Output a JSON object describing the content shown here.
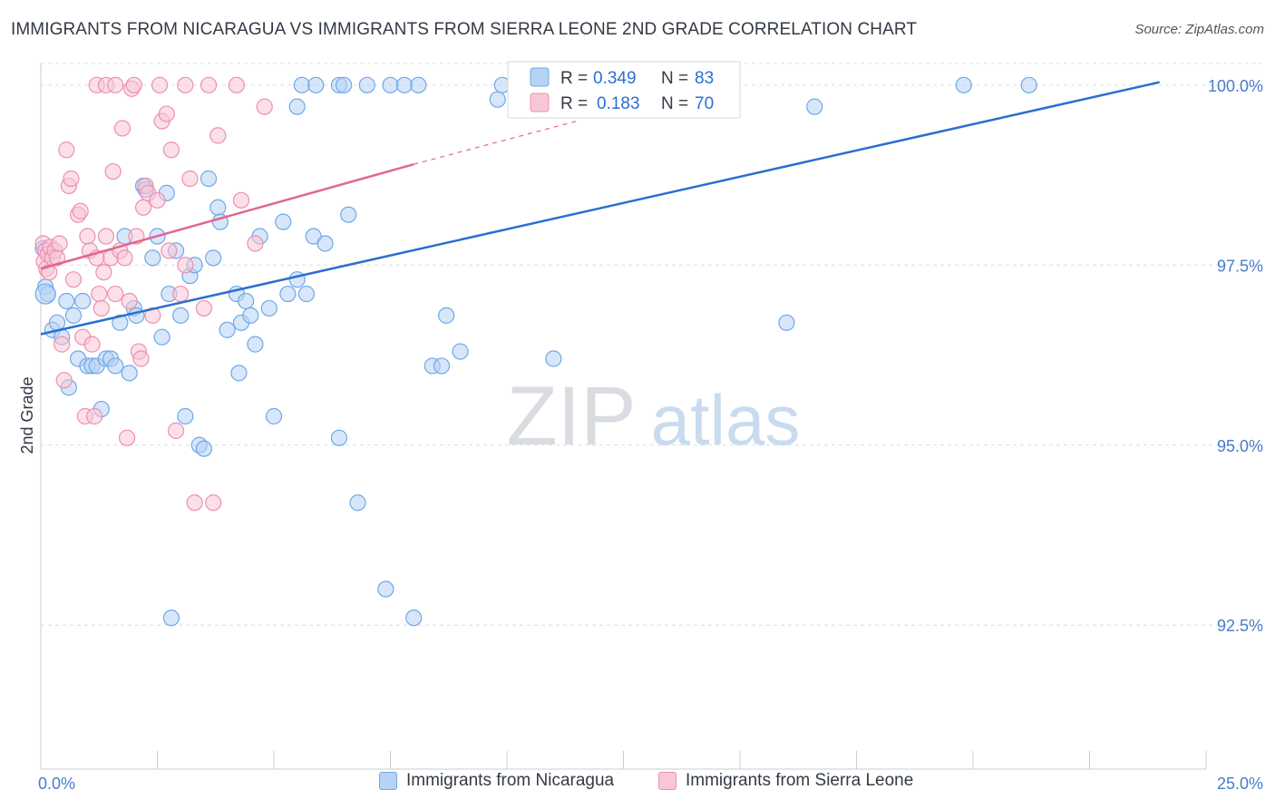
{
  "header": {
    "title": "IMMIGRANTS FROM NICARAGUA VS IMMIGRANTS FROM SIERRA LEONE 2ND GRADE CORRELATION CHART",
    "source": "Source: ZipAtlas.com"
  },
  "watermark": {
    "zip": "ZIP",
    "atlas": "atlas"
  },
  "colors": {
    "blue": "#6fa8e8",
    "blue_line": "#2a6fd0",
    "blue_fill": "#b6d2f4",
    "pink": "#ee8fb0",
    "pink_line": "#e2668f",
    "pink_fill": "#f8c7d7",
    "tick_text": "#4a7cc9",
    "grid": "#d9dde3"
  },
  "stats_legend": {
    "rows": [
      {
        "r_label": "R =",
        "r_value": "0.349",
        "n_label": "N =",
        "n_value": "83"
      },
      {
        "r_label": "R =",
        "r_value": "0.183",
        "n_label": "N =",
        "n_value": "70"
      }
    ]
  },
  "chart_data": {
    "type": "scatter",
    "title": "IMMIGRANTS FROM NICARAGUA VS IMMIGRANTS FROM SIERRA LEONE 2ND GRADE CORRELATION CHART",
    "xlabel": "",
    "ylabel": "2nd Grade",
    "xlim": [
      0,
      25
    ],
    "ylim": [
      90.5,
      100.3
    ],
    "x_tick_labels": [
      "0.0%",
      "25.0%"
    ],
    "y_ticks": [
      92.5,
      95.0,
      97.5,
      100.0
    ],
    "y_tick_labels": [
      "92.5%",
      "95.0%",
      "97.5%",
      "100.0%"
    ],
    "grid": "horizontal dashed",
    "legend_position": "bottom",
    "series": [
      {
        "name": "Immigrants from Nicaragua",
        "color": "#6fa8e8",
        "trend": {
          "x": [
            0.0,
            24.0
          ],
          "y": [
            96.54,
            100.04
          ]
        },
        "points": [
          [
            0.05,
            97.73
          ],
          [
            0.1,
            97.2
          ],
          [
            0.15,
            97.1
          ],
          [
            0.25,
            96.6
          ],
          [
            0.35,
            96.7
          ],
          [
            0.45,
            96.5
          ],
          [
            0.55,
            97.0
          ],
          [
            0.6,
            95.8
          ],
          [
            0.7,
            96.8
          ],
          [
            0.8,
            96.2
          ],
          [
            0.9,
            97.0
          ],
          [
            1.0,
            96.1
          ],
          [
            1.1,
            96.1
          ],
          [
            1.2,
            96.1
          ],
          [
            1.3,
            95.5
          ],
          [
            1.4,
            96.2
          ],
          [
            1.5,
            96.2
          ],
          [
            1.6,
            96.1
          ],
          [
            1.7,
            96.7
          ],
          [
            1.8,
            97.9
          ],
          [
            1.9,
            96.0
          ],
          [
            2.0,
            96.9
          ],
          [
            2.05,
            96.8
          ],
          [
            2.2,
            98.6
          ],
          [
            2.25,
            98.55
          ],
          [
            2.4,
            97.6
          ],
          [
            2.5,
            97.9
          ],
          [
            2.6,
            96.5
          ],
          [
            2.7,
            98.5
          ],
          [
            2.75,
            97.1
          ],
          [
            2.9,
            97.7
          ],
          [
            3.0,
            96.8
          ],
          [
            3.1,
            95.4
          ],
          [
            3.2,
            97.35
          ],
          [
            3.3,
            97.5
          ],
          [
            3.4,
            95.0
          ],
          [
            3.5,
            94.95
          ],
          [
            3.6,
            98.7
          ],
          [
            3.7,
            97.6
          ],
          [
            3.8,
            98.3
          ],
          [
            3.85,
            98.1
          ],
          [
            4.0,
            96.6
          ],
          [
            4.2,
            97.1
          ],
          [
            4.25,
            96.0
          ],
          [
            4.3,
            96.7
          ],
          [
            4.4,
            97.0
          ],
          [
            4.5,
            96.8
          ],
          [
            4.6,
            96.4
          ],
          [
            4.7,
            97.9
          ],
          [
            4.9,
            96.9
          ],
          [
            5.0,
            95.4
          ],
          [
            5.2,
            98.1
          ],
          [
            5.3,
            97.1
          ],
          [
            5.5,
            97.3
          ],
          [
            5.7,
            97.1
          ],
          [
            5.85,
            97.9
          ],
          [
            6.1,
            97.8
          ],
          [
            6.4,
            95.1
          ],
          [
            6.6,
            98.2
          ],
          [
            6.8,
            94.2
          ],
          [
            7.4,
            93.0
          ],
          [
            8.0,
            92.6
          ],
          [
            8.4,
            96.1
          ],
          [
            8.6,
            96.1
          ],
          [
            8.7,
            96.8
          ],
          [
            9.0,
            96.3
          ],
          [
            11.0,
            96.2
          ],
          [
            16.0,
            96.7
          ],
          [
            16.6,
            99.7
          ],
          [
            2.8,
            92.6
          ],
          [
            5.5,
            99.7
          ],
          [
            5.6,
            100.0
          ],
          [
            5.9,
            100.0
          ],
          [
            6.4,
            100.0
          ],
          [
            6.5,
            100.0
          ],
          [
            7.0,
            100.0
          ],
          [
            7.5,
            100.0
          ],
          [
            7.8,
            100.0
          ],
          [
            8.1,
            100.0
          ],
          [
            9.8,
            99.8
          ],
          [
            9.9,
            100.0
          ],
          [
            19.8,
            100.0
          ],
          [
            21.2,
            100.0
          ]
        ]
      },
      {
        "name": "Immigrants from Sierra Leone",
        "color": "#ee8fb0",
        "trend": {
          "x": [
            0.0,
            8.0
          ],
          "y": [
            97.45,
            98.9
          ],
          "dashed_extension": {
            "x": [
              8.0,
              11.5
            ],
            "y": [
              98.9,
              99.5
            ]
          }
        },
        "points": [
          [
            0.05,
            97.8
          ],
          [
            0.07,
            97.55
          ],
          [
            0.1,
            97.7
          ],
          [
            0.12,
            97.45
          ],
          [
            0.15,
            97.65
          ],
          [
            0.18,
            97.4
          ],
          [
            0.2,
            97.75
          ],
          [
            0.25,
            97.6
          ],
          [
            0.3,
            97.7
          ],
          [
            0.35,
            97.6
          ],
          [
            0.4,
            97.8
          ],
          [
            0.45,
            96.4
          ],
          [
            0.5,
            95.9
          ],
          [
            0.55,
            99.1
          ],
          [
            0.6,
            98.6
          ],
          [
            0.65,
            98.7
          ],
          [
            0.7,
            97.3
          ],
          [
            0.8,
            98.2
          ],
          [
            0.85,
            98.25
          ],
          [
            0.9,
            96.5
          ],
          [
            0.95,
            95.4
          ],
          [
            1.0,
            97.9
          ],
          [
            1.05,
            97.7
          ],
          [
            1.1,
            96.4
          ],
          [
            1.15,
            95.4
          ],
          [
            1.2,
            97.6
          ],
          [
            1.25,
            97.1
          ],
          [
            1.3,
            96.9
          ],
          [
            1.35,
            97.4
          ],
          [
            1.4,
            97.9
          ],
          [
            1.5,
            97.6
          ],
          [
            1.55,
            98.8
          ],
          [
            1.6,
            97.1
          ],
          [
            1.7,
            97.7
          ],
          [
            1.75,
            99.4
          ],
          [
            1.8,
            97.6
          ],
          [
            1.85,
            95.1
          ],
          [
            1.9,
            97.0
          ],
          [
            1.95,
            99.95
          ],
          [
            2.05,
            97.9
          ],
          [
            2.1,
            96.3
          ],
          [
            2.15,
            96.2
          ],
          [
            2.2,
            98.3
          ],
          [
            2.25,
            98.6
          ],
          [
            2.3,
            98.5
          ],
          [
            2.4,
            96.8
          ],
          [
            2.5,
            98.4
          ],
          [
            2.6,
            99.5
          ],
          [
            2.7,
            99.6
          ],
          [
            2.75,
            97.7
          ],
          [
            2.8,
            99.1
          ],
          [
            2.9,
            95.2
          ],
          [
            3.0,
            97.1
          ],
          [
            3.1,
            97.5
          ],
          [
            3.2,
            98.7
          ],
          [
            3.3,
            94.2
          ],
          [
            3.5,
            96.9
          ],
          [
            3.6,
            100.0
          ],
          [
            3.7,
            94.2
          ],
          [
            3.8,
            99.3
          ],
          [
            4.2,
            100.0
          ],
          [
            4.3,
            98.4
          ],
          [
            4.6,
            97.8
          ],
          [
            4.8,
            99.7
          ],
          [
            1.2,
            100.0
          ],
          [
            1.4,
            100.0
          ],
          [
            1.6,
            100.0
          ],
          [
            2.0,
            100.0
          ],
          [
            2.55,
            100.0
          ],
          [
            3.1,
            100.0
          ]
        ]
      }
    ]
  }
}
